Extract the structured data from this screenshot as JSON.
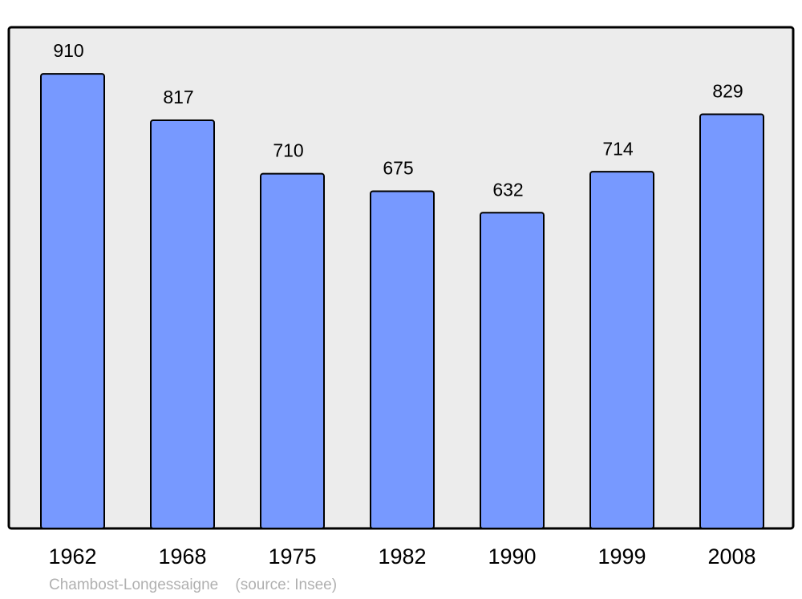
{
  "chart_data": {
    "type": "bar",
    "caption": "Chambost-Longessaigne    (source: Insee)",
    "categories": [
      "1962",
      "1968",
      "1975",
      "1982",
      "1990",
      "1999",
      "2008"
    ],
    "values": [
      910,
      817,
      710,
      675,
      632,
      714,
      829
    ],
    "color": "#7799ff",
    "ylim": [
      0,
      1000
    ]
  }
}
